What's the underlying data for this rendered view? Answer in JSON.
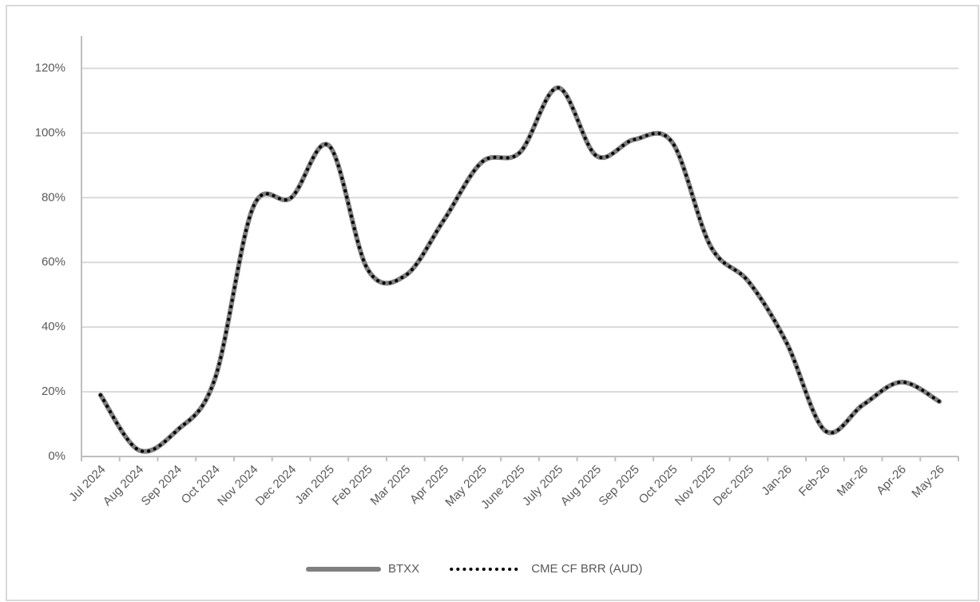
{
  "chart_data": {
    "type": "line",
    "categories": [
      "Jul 2024",
      "Aug 2024",
      "Sep 2024",
      "Oct 2024",
      "Nov 2024",
      "Dec 2024",
      "Jan 2025",
      "Feb 2025",
      "Mar 2025",
      "Apr 2025",
      "May 2025",
      "June 2025",
      "July 2025",
      "Aug 2025",
      "Sep 2025",
      "Oct 2025",
      "Nov 2025",
      "Dec 2025",
      "Jan-26",
      "Feb-26",
      "Mar-26",
      "Apr-26",
      "May-26"
    ],
    "series": [
      {
        "name": "BTXX",
        "color": "#808080",
        "style": "solid",
        "values": [
          19,
          2,
          8,
          24,
          77,
          80,
          96,
          58,
          56,
          73,
          91,
          94,
          114,
          93,
          98,
          97,
          65,
          54,
          35,
          8,
          16,
          23,
          17
        ]
      },
      {
        "name": "CME CF BRR (AUD)",
        "color": "#000000",
        "style": "dotted",
        "values": [
          19,
          2,
          8,
          24,
          77,
          80,
          96,
          58,
          56,
          73,
          91,
          94,
          114,
          93,
          98,
          97,
          65,
          54,
          35,
          8,
          16,
          23,
          17
        ]
      }
    ],
    "ylim": [
      0,
      130
    ],
    "yticks": [
      {
        "value": 0,
        "label": "0%"
      },
      {
        "value": 20,
        "label": "20%"
      },
      {
        "value": 40,
        "label": "40%"
      },
      {
        "value": 60,
        "label": "60%"
      },
      {
        "value": 80,
        "label": "80%"
      },
      {
        "value": 100,
        "label": "100%"
      },
      {
        "value": 120,
        "label": "120%"
      }
    ],
    "grid": true,
    "legend": "bottom"
  }
}
